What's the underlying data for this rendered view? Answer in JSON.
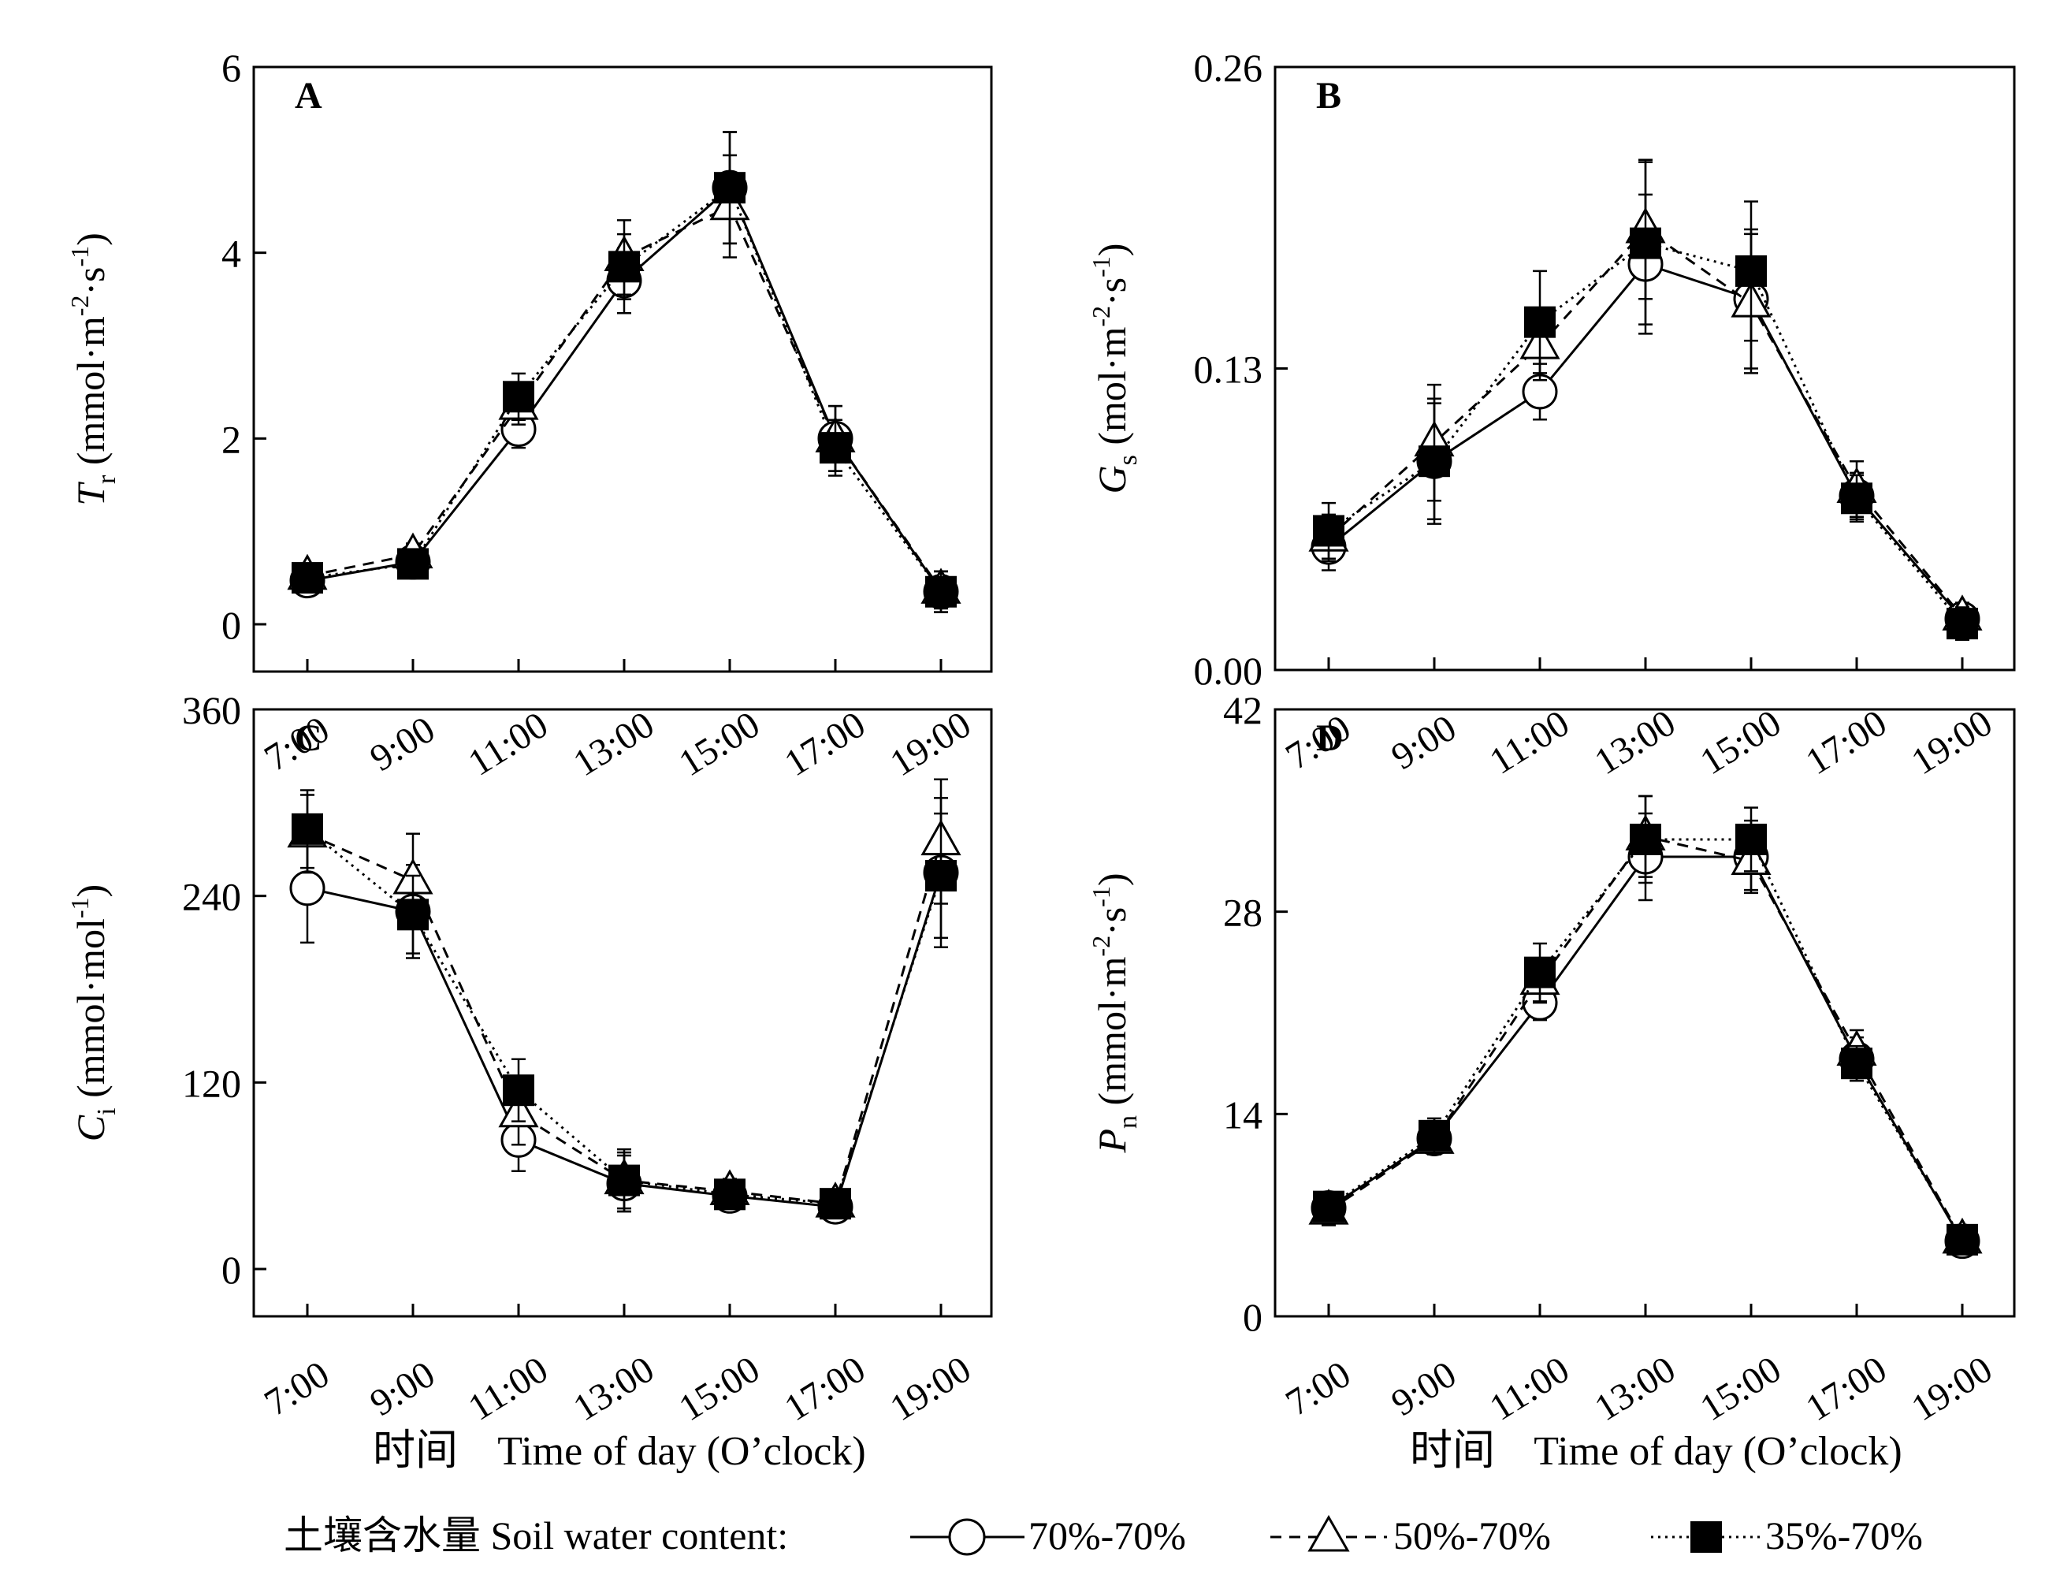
{
  "chart_data": [
    {
      "type": "line",
      "panel_letter": "A",
      "ylabel": {
        "main": "T",
        "sub": "r",
        "unit": "(mmol·m",
        "sup1": "-2",
        "mid": "·s",
        "sup2": "-1",
        "end": ")"
      },
      "ylim": [
        0,
        6
      ],
      "yticks": [
        "0",
        "2",
        "4",
        "6"
      ],
      "yticks_val": [
        0,
        2,
        4,
        6
      ],
      "categories": [
        "7:00",
        "9:00",
        "11:00",
        "13:00",
        "15:00",
        "17:00",
        "19:00"
      ],
      "series": [
        {
          "name": "70%-70%",
          "values": [
            0.47,
            0.67,
            2.1,
            3.7,
            4.7,
            2.0,
            0.35
          ],
          "err": [
            0.1,
            0.12,
            0.2,
            0.35,
            0.6,
            0.35,
            0.22
          ]
        },
        {
          "name": "50%-70%",
          "values": [
            0.52,
            0.75,
            2.35,
            3.95,
            4.5,
            2.0,
            0.37
          ],
          "err": [
            0.1,
            0.12,
            0.2,
            0.4,
            0.55,
            0.35,
            0.2
          ]
        },
        {
          "name": "35%-70%",
          "values": [
            0.5,
            0.65,
            2.45,
            3.85,
            4.7,
            1.9,
            0.35
          ],
          "err": [
            0.1,
            0.12,
            0.25,
            0.35,
            0.6,
            0.3,
            0.22
          ]
        }
      ]
    },
    {
      "type": "line",
      "panel_letter": "B",
      "ylabel": {
        "main": "G",
        "sub": "s",
        "unit": "(mol·m",
        "sup1": "-2",
        "mid": "·s",
        "sup2": "-1",
        "end": ")"
      },
      "ylim": [
        0,
        0.26
      ],
      "yticks": [
        "0.00",
        "0.13",
        "0.26"
      ],
      "yticks_val": [
        0,
        0.13,
        0.26
      ],
      "categories": [
        "7:00",
        "9:00",
        "11:00",
        "13:00",
        "15:00",
        "17:00",
        "19:00"
      ],
      "series": [
        {
          "name": "70%-70%",
          "values": [
            0.053,
            0.09,
            0.12,
            0.175,
            0.16,
            0.075,
            0.022
          ],
          "err": [
            0.01,
            0.025,
            0.012,
            0.03,
            0.03,
            0.01,
            0.006
          ]
        },
        {
          "name": "50%-70%",
          "values": [
            0.057,
            0.098,
            0.14,
            0.19,
            0.158,
            0.078,
            0.023
          ],
          "err": [
            0.01,
            0.025,
            0.015,
            0.03,
            0.03,
            0.012,
            0.006
          ]
        },
        {
          "name": "35%-70%",
          "values": [
            0.06,
            0.09,
            0.15,
            0.184,
            0.172,
            0.074,
            0.02
          ],
          "err": [
            0.012,
            0.027,
            0.022,
            0.035,
            0.03,
            0.01,
            0.007
          ]
        }
      ]
    },
    {
      "type": "line",
      "panel_letter": "C",
      "ylabel": {
        "main": "C",
        "sub": "i",
        "unit": "(mmol·mol",
        "sup1": "-1",
        "end": ")"
      },
      "ylim": [
        0,
        360
      ],
      "yticks": [
        "0",
        "120",
        "240",
        "360"
      ],
      "yticks_val": [
        0,
        120,
        240,
        360
      ],
      "categories": [
        "7:00",
        "9:00",
        "11:00",
        "13:00",
        "15:00",
        "17:00",
        "19:00"
      ],
      "series": [
        {
          "name": "70%-70%",
          "values": [
            245,
            230,
            83,
            55,
            47,
            40,
            255
          ],
          "err": [
            35,
            30,
            20,
            18,
            8,
            6,
            48
          ]
        },
        {
          "name": "50%-70%",
          "values": [
            280,
            250,
            100,
            57,
            50,
            42,
            275
          ],
          "err": [
            25,
            30,
            20,
            20,
            8,
            6,
            40
          ]
        },
        {
          "name": "35%-70%",
          "values": [
            283,
            228,
            115,
            57,
            48,
            42,
            253
          ],
          "err": [
            25,
            25,
            20,
            18,
            8,
            6,
            40
          ]
        }
      ]
    },
    {
      "type": "line",
      "panel_letter": "D",
      "ylabel": {
        "main": "P",
        "sub": "n",
        "unit": "(mmol·m",
        "sup1": "-2",
        "mid": "·s",
        "sup2": "-1",
        "end": ")"
      },
      "ylim": [
        0,
        42
      ],
      "yticks": [
        "0",
        "14",
        "28",
        "42"
      ],
      "yticks_val": [
        0,
        14,
        28,
        42
      ],
      "categories": [
        "7:00",
        "9:00",
        "11:00",
        "13:00",
        "15:00",
        "17:00",
        "19:00"
      ],
      "series": [
        {
          "name": "70%-70%",
          "values": [
            7.5,
            12.3,
            21.7,
            31.8,
            31.8,
            17.8,
            5.2
          ],
          "err": [
            1.0,
            1.0,
            1.2,
            3.0,
            2.5,
            1.5,
            1.0
          ]
        },
        {
          "name": "50%-70%",
          "values": [
            7.3,
            12.2,
            23.2,
            33.2,
            31.5,
            18.3,
            5.3
          ],
          "err": [
            1.0,
            1.0,
            1.5,
            2.8,
            2.0,
            1.5,
            1.0
          ]
        },
        {
          "name": "35%-70%",
          "values": [
            7.6,
            12.5,
            23.8,
            33.0,
            33.0,
            17.5,
            5.3
          ],
          "err": [
            1.0,
            1.2,
            2.0,
            3.0,
            2.2,
            1.2,
            1.0
          ]
        }
      ]
    }
  ],
  "xlabel": {
    "cn": "时间",
    "en": "Time of day (O’clock)"
  },
  "legend": {
    "title": "土壤含水量 Soil water content:",
    "items": [
      "70%-70%",
      "50%-70%",
      "35%-70%"
    ]
  }
}
